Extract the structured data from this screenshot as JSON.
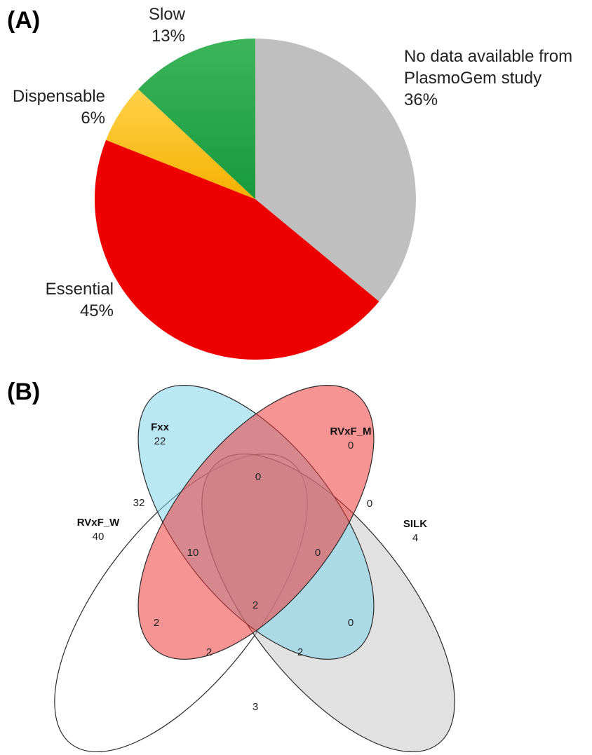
{
  "panels": {
    "a": "(A)",
    "b": "(B)"
  },
  "chart_data": [
    {
      "type": "pie",
      "slices": [
        {
          "label": "No data available from PlasmoGem study",
          "display_lines": [
            "No data available from",
            "PlasmoGem study"
          ],
          "percent_label": "36%",
          "value": 36,
          "color": "#bfbfbf"
        },
        {
          "label": "Essential",
          "display_lines": [
            "Essential"
          ],
          "percent_label": "45%",
          "value": 45,
          "color": "#ee0000"
        },
        {
          "label": "Dispensable",
          "display_lines": [
            "Dispensable"
          ],
          "percent_label": "6%",
          "value": 6,
          "color": "#ffc000"
        },
        {
          "label": "Slow",
          "display_lines": [
            "Slow"
          ],
          "percent_label": "13%",
          "value": 13,
          "color": "#22a84a"
        }
      ]
    },
    {
      "type": "venn",
      "sets": [
        {
          "name": "Fxx",
          "only": "22",
          "color": "#7fd4ea"
        },
        {
          "name": "RVxF_M",
          "only": "0",
          "color": "#ee3b3b"
        },
        {
          "name": "RVxF_W",
          "only": "40",
          "color": "#ffffff"
        },
        {
          "name": "SILK",
          "only": "4",
          "color": "#c8c8c8"
        }
      ],
      "regions": [
        {
          "sets": [
            "Fxx",
            "RVxF_M"
          ],
          "value": "0"
        },
        {
          "sets": [
            "RVxF_M",
            "SILK"
          ],
          "value": "0"
        },
        {
          "sets": [
            "Fxx",
            "RVxF_W"
          ],
          "value": "32"
        },
        {
          "sets": [
            "Fxx",
            "RVxF_M",
            "RVxF_W"
          ],
          "value": "10"
        },
        {
          "sets": [
            "Fxx",
            "RVxF_M",
            "SILK"
          ],
          "value": "0"
        },
        {
          "sets": [
            "Fxx",
            "RVxF_M",
            "RVxF_W",
            "SILK"
          ],
          "value": "2"
        },
        {
          "sets": [
            "RVxF_M",
            "RVxF_W"
          ],
          "value": "2"
        },
        {
          "sets": [
            "Fxx",
            "SILK"
          ],
          "value": "0"
        },
        {
          "sets": [
            "RVxF_M",
            "RVxF_W",
            "SILK"
          ],
          "value": "2"
        },
        {
          "sets": [
            "Fxx",
            "RVxF_W",
            "SILK"
          ],
          "value": "2"
        },
        {
          "sets": [
            "RVxF_W",
            "SILK"
          ],
          "value": "3"
        }
      ]
    }
  ]
}
